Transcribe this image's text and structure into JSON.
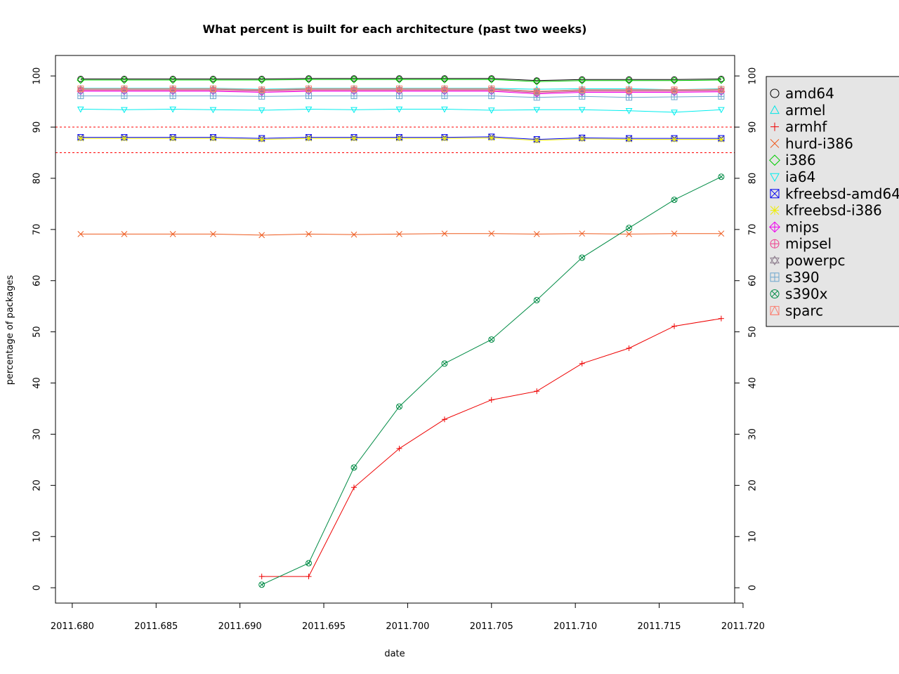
{
  "chart_data": {
    "type": "line",
    "title": "What percent is built for each architecture (past two weeks)",
    "xlabel": "date",
    "ylabel": "percentage of packages",
    "xlim": [
      2011.679,
      2011.7195
    ],
    "ylim": [
      -3,
      104
    ],
    "x_ticks": [
      "2011.680",
      "2011.685",
      "2011.690",
      "2011.695",
      "2011.700",
      "2011.705",
      "2011.710",
      "2011.715",
      "2011.720"
    ],
    "y_ticks": [
      "0",
      "10",
      "20",
      "30",
      "40",
      "50",
      "60",
      "70",
      "80",
      "90",
      "100"
    ],
    "reference_lines": [
      {
        "y": 90,
        "color": "#ff0000",
        "style": "dashed"
      },
      {
        "y": 85,
        "color": "#ff0000",
        "style": "dashed"
      }
    ],
    "legend_position": "right",
    "x": [
      2011.6805,
      2011.6831,
      2011.686,
      2011.6884,
      2011.6913,
      2011.6941,
      2011.6968,
      2011.6995,
      2011.7022,
      2011.705,
      2011.7077,
      2011.7104,
      2011.7132,
      2011.7159,
      2011.7187
    ],
    "series": [
      {
        "name": "amd64",
        "color": "#000000",
        "marker": "circle",
        "values": [
          99.4,
          99.4,
          99.4,
          99.4,
          99.4,
          99.5,
          99.5,
          99.5,
          99.5,
          99.5,
          99.1,
          99.3,
          99.3,
          99.3,
          99.4
        ]
      },
      {
        "name": "armel",
        "color": "#00e5e5",
        "marker": "triangle-up",
        "values": [
          97.6,
          97.6,
          97.6,
          97.6,
          97.4,
          97.6,
          97.6,
          97.6,
          97.6,
          97.6,
          97.4,
          97.5,
          97.5,
          97.3,
          97.5
        ]
      },
      {
        "name": "armhf",
        "color": "#ee0000",
        "marker": "plus",
        "values": [
          null,
          null,
          null,
          null,
          2.2,
          2.2,
          19.6,
          27.2,
          32.9,
          36.7,
          38.4,
          43.8,
          46.8,
          51.1,
          52.6
        ]
      },
      {
        "name": "hurd-i386",
        "color": "#ee5a1e",
        "marker": "x",
        "values": [
          69.1,
          69.1,
          69.1,
          69.1,
          68.9,
          69.1,
          69.0,
          69.1,
          69.2,
          69.2,
          69.1,
          69.2,
          69.1,
          69.2,
          69.2
        ]
      },
      {
        "name": "i386",
        "color": "#00cc00",
        "marker": "diamond",
        "values": [
          99.2,
          99.2,
          99.2,
          99.2,
          99.2,
          99.3,
          99.3,
          99.3,
          99.3,
          99.3,
          98.9,
          99.1,
          99.1,
          99.1,
          99.2
        ]
      },
      {
        "name": "ia64",
        "color": "#00eeee",
        "marker": "triangle-down",
        "values": [
          93.5,
          93.4,
          93.5,
          93.4,
          93.3,
          93.5,
          93.4,
          93.5,
          93.5,
          93.3,
          93.4,
          93.4,
          93.2,
          92.9,
          93.4
        ]
      },
      {
        "name": "kfreebsd-amd64",
        "color": "#0000ee",
        "marker": "square-x",
        "values": [
          88.0,
          88.0,
          88.0,
          88.0,
          87.8,
          88.0,
          88.0,
          88.0,
          88.0,
          88.1,
          87.6,
          87.9,
          87.8,
          87.8,
          87.8
        ]
      },
      {
        "name": "kfreebsd-i386",
        "color": "#eeee00",
        "marker": "star",
        "values": [
          87.8,
          87.8,
          87.8,
          87.8,
          87.6,
          87.8,
          87.8,
          87.8,
          87.8,
          87.9,
          87.4,
          87.7,
          87.6,
          87.6,
          87.6
        ]
      },
      {
        "name": "mips",
        "color": "#ee00ee",
        "marker": "diamond-plus",
        "values": [
          97.0,
          97.0,
          97.0,
          97.0,
          96.8,
          97.0,
          97.0,
          97.0,
          97.0,
          97.0,
          96.5,
          96.8,
          96.8,
          96.8,
          96.9
        ]
      },
      {
        "name": "mipsel",
        "color": "#ee3a8c",
        "marker": "circle-plus",
        "values": [
          97.2,
          97.2,
          97.2,
          97.2,
          97.0,
          97.2,
          97.2,
          97.2,
          97.2,
          97.2,
          96.7,
          97.0,
          97.0,
          97.0,
          97.1
        ]
      },
      {
        "name": "powerpc",
        "color": "#8b7b8b",
        "marker": "star-of-david",
        "values": [
          97.4,
          97.4,
          97.4,
          97.4,
          97.2,
          97.4,
          97.4,
          97.4,
          97.4,
          97.4,
          96.9,
          97.2,
          97.2,
          97.2,
          97.3
        ]
      },
      {
        "name": "s390",
        "color": "#6ca6cd",
        "marker": "square-plus",
        "values": [
          96.1,
          96.1,
          96.1,
          96.1,
          96.0,
          96.1,
          96.1,
          96.1,
          96.1,
          96.1,
          95.8,
          96.0,
          95.8,
          95.9,
          96.0
        ]
      },
      {
        "name": "s390x",
        "color": "#008b45",
        "marker": "circle-x",
        "values": [
          null,
          null,
          null,
          null,
          0.6,
          4.8,
          23.5,
          35.4,
          43.8,
          48.5,
          56.2,
          64.5,
          70.3,
          75.8,
          80.3
        ]
      },
      {
        "name": "sparc",
        "color": "#fa8072",
        "marker": "square-triangle",
        "values": [
          97.5,
          97.5,
          97.5,
          97.5,
          97.3,
          97.5,
          97.5,
          97.5,
          97.5,
          97.5,
          97.0,
          97.3,
          97.3,
          97.3,
          97.4
        ]
      }
    ]
  }
}
